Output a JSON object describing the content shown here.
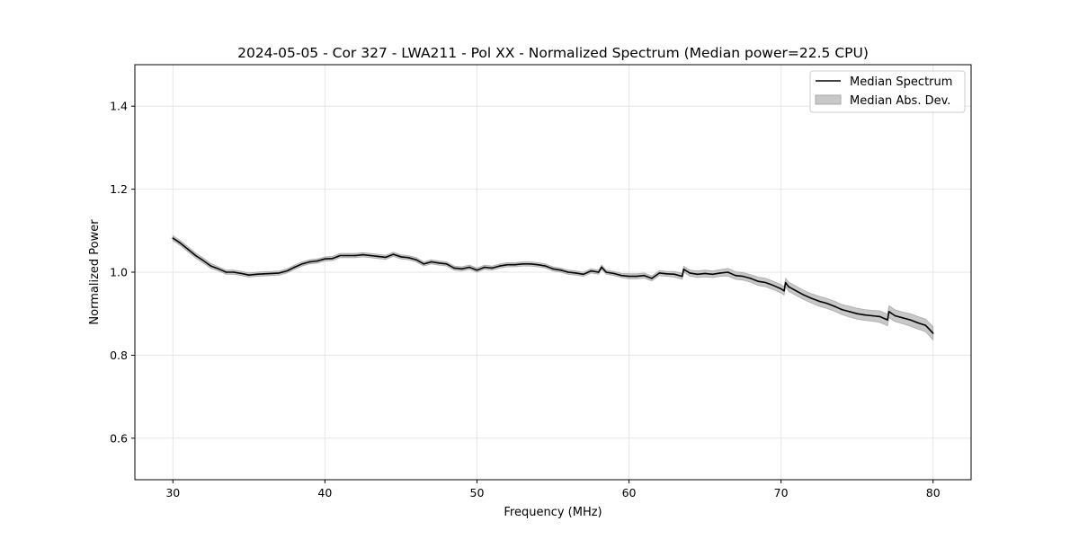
{
  "chart_data": {
    "type": "line",
    "title": "2024-05-05 - Cor 327 - LWA211 - Pol XX - Normalized Spectrum (Median power=22.5 CPU)",
    "xlabel": "Frequency (MHz)",
    "ylabel": "Normalized Power",
    "xlim": [
      27.5,
      82.5
    ],
    "ylim": [
      0.5,
      1.5
    ],
    "xticks": [
      30,
      40,
      50,
      60,
      70,
      80
    ],
    "yticks": [
      0.6,
      0.8,
      1.0,
      1.2,
      1.4
    ],
    "ytick_labels": [
      "0.6",
      "0.8",
      "1.0",
      "1.2",
      "1.4"
    ],
    "grid": true,
    "legend_position": "top-right",
    "legend": [
      "Median Spectrum",
      "Median Abs. Dev."
    ],
    "colors": {
      "line": "#000000",
      "band": "#c8c8c8",
      "band_edge": "#a8a8a8",
      "grid": "#e6e6e6"
    },
    "points": [
      [
        30,
        1.082,
        0.006
      ],
      [
        30.5,
        1.07,
        0.006
      ],
      [
        31,
        1.055,
        0.006
      ],
      [
        31.5,
        1.04,
        0.006
      ],
      [
        32,
        1.028,
        0.006
      ],
      [
        32.5,
        1.015,
        0.006
      ],
      [
        33,
        1.008,
        0.005
      ],
      [
        33.5,
        1.0,
        0.005
      ],
      [
        34,
        1.0,
        0.005
      ],
      [
        34.5,
        0.997,
        0.005
      ],
      [
        35,
        0.993,
        0.005
      ],
      [
        35.5,
        0.995,
        0.005
      ],
      [
        36,
        0.996,
        0.005
      ],
      [
        36.5,
        0.997,
        0.005
      ],
      [
        37,
        0.998,
        0.005
      ],
      [
        37.5,
        1.003,
        0.005
      ],
      [
        38,
        1.012,
        0.005
      ],
      [
        38.5,
        1.02,
        0.005
      ],
      [
        39,
        1.025,
        0.005
      ],
      [
        39.5,
        1.027,
        0.005
      ],
      [
        40,
        1.032,
        0.005
      ],
      [
        40.5,
        1.033,
        0.005
      ],
      [
        41,
        1.04,
        0.005
      ],
      [
        41.5,
        1.04,
        0.005
      ],
      [
        42,
        1.04,
        0.005
      ],
      [
        42.5,
        1.042,
        0.005
      ],
      [
        43,
        1.04,
        0.005
      ],
      [
        43.5,
        1.038,
        0.005
      ],
      [
        44,
        1.036,
        0.005
      ],
      [
        44.5,
        1.043,
        0.005
      ],
      [
        45,
        1.037,
        0.005
      ],
      [
        45.5,
        1.035,
        0.005
      ],
      [
        46,
        1.03,
        0.005
      ],
      [
        46.5,
        1.02,
        0.005
      ],
      [
        47,
        1.025,
        0.005
      ],
      [
        47.5,
        1.022,
        0.005
      ],
      [
        48,
        1.02,
        0.005
      ],
      [
        48.5,
        1.01,
        0.005
      ],
      [
        49,
        1.008,
        0.005
      ],
      [
        49.5,
        1.012,
        0.005
      ],
      [
        50,
        1.005,
        0.005
      ],
      [
        50.5,
        1.012,
        0.005
      ],
      [
        51,
        1.01,
        0.005
      ],
      [
        51.5,
        1.015,
        0.005
      ],
      [
        52,
        1.018,
        0.005
      ],
      [
        52.5,
        1.018,
        0.005
      ],
      [
        53,
        1.02,
        0.005
      ],
      [
        53.5,
        1.02,
        0.005
      ],
      [
        54,
        1.018,
        0.005
      ],
      [
        54.5,
        1.015,
        0.005
      ],
      [
        55,
        1.008,
        0.005
      ],
      [
        55.5,
        1.005,
        0.005
      ],
      [
        56,
        1.0,
        0.005
      ],
      [
        56.5,
        0.998,
        0.005
      ],
      [
        57,
        0.995,
        0.005
      ],
      [
        57.5,
        1.003,
        0.005
      ],
      [
        58,
        1.0,
        0.005
      ],
      [
        58.2,
        1.012,
        0.005
      ],
      [
        58.5,
        1.0,
        0.005
      ],
      [
        59,
        0.997,
        0.005
      ],
      [
        59.5,
        0.992,
        0.005
      ],
      [
        60,
        0.99,
        0.006
      ],
      [
        60.5,
        0.99,
        0.006
      ],
      [
        61,
        0.992,
        0.006
      ],
      [
        61.5,
        0.985,
        0.006
      ],
      [
        62,
        0.998,
        0.006
      ],
      [
        62.5,
        0.996,
        0.006
      ],
      [
        63,
        0.995,
        0.007
      ],
      [
        63.5,
        0.99,
        0.007
      ],
      [
        63.6,
        1.007,
        0.007
      ],
      [
        64,
        0.998,
        0.007
      ],
      [
        64.5,
        0.995,
        0.008
      ],
      [
        65,
        0.997,
        0.008
      ],
      [
        65.5,
        0.995,
        0.008
      ],
      [
        66,
        0.998,
        0.008
      ],
      [
        66.5,
        1.0,
        0.009
      ],
      [
        67,
        0.992,
        0.009
      ],
      [
        67.5,
        0.99,
        0.009
      ],
      [
        68,
        0.985,
        0.009
      ],
      [
        68.5,
        0.978,
        0.01
      ],
      [
        69,
        0.975,
        0.01
      ],
      [
        69.5,
        0.968,
        0.01
      ],
      [
        70,
        0.96,
        0.01
      ],
      [
        70.2,
        0.955,
        0.01
      ],
      [
        70.3,
        0.975,
        0.01
      ],
      [
        70.5,
        0.965,
        0.011
      ],
      [
        71,
        0.955,
        0.011
      ],
      [
        71.5,
        0.945,
        0.011
      ],
      [
        72,
        0.937,
        0.011
      ],
      [
        72.5,
        0.93,
        0.012
      ],
      [
        73,
        0.925,
        0.012
      ],
      [
        73.5,
        0.918,
        0.012
      ],
      [
        74,
        0.91,
        0.012
      ],
      [
        74.5,
        0.905,
        0.013
      ],
      [
        75,
        0.9,
        0.013
      ],
      [
        75.5,
        0.897,
        0.013
      ],
      [
        76,
        0.895,
        0.013
      ],
      [
        76.5,
        0.893,
        0.014
      ],
      [
        77,
        0.885,
        0.014
      ],
      [
        77.1,
        0.905,
        0.014
      ],
      [
        77.5,
        0.895,
        0.014
      ],
      [
        78,
        0.89,
        0.014
      ],
      [
        78.5,
        0.885,
        0.015
      ],
      [
        79,
        0.878,
        0.015
      ],
      [
        79.5,
        0.872,
        0.015
      ],
      [
        80,
        0.853,
        0.016
      ]
    ]
  }
}
